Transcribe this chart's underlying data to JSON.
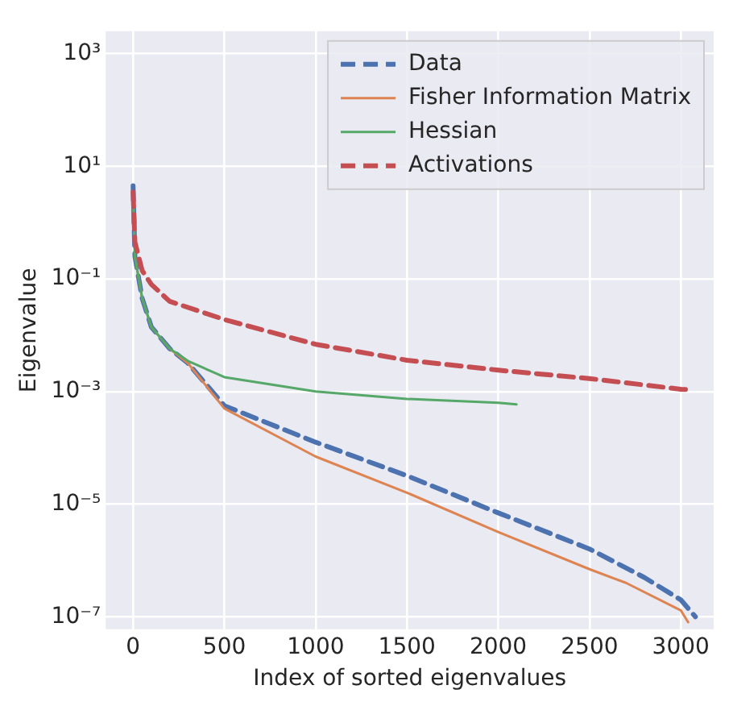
{
  "chart_data": {
    "type": "line",
    "xlabel": "Index of sorted eigenvalues",
    "ylabel": "Eigenvalue",
    "log": "y",
    "grid": true,
    "legend": "top right",
    "xlim": [
      -150,
      3180
    ],
    "xticks": [
      0,
      500,
      1000,
      1500,
      2000,
      2500,
      3000
    ],
    "ylim": [
      6e-08,
      2500
    ],
    "yticks": [
      {
        "value": 1000,
        "label": "10³"
      },
      {
        "value": 10,
        "label": "10¹"
      },
      {
        "value": 0.1,
        "label": "10⁻¹"
      },
      {
        "value": 0.001,
        "label": "10⁻³"
      },
      {
        "value": 1e-05,
        "label": "10⁻⁵"
      },
      {
        "value": 1e-07,
        "label": "10⁻⁷"
      }
    ],
    "series": [
      {
        "name": "Data",
        "color": "#4c72b0",
        "line_style": "dashed",
        "x": [
          0,
          10,
          50,
          100,
          200,
          300,
          500,
          1000,
          1500,
          2000,
          2500,
          2800,
          3000,
          3080
        ],
        "values": [
          4.5,
          0.25,
          0.045,
          0.014,
          0.0058,
          0.0032,
          0.00056,
          0.000126,
          3.2e-05,
          7e-06,
          1.6e-06,
          5e-07,
          2e-07,
          1e-07
        ]
      },
      {
        "name": "Fisher Information Matrix",
        "color": "#dd8452",
        "line_style": "solid",
        "x": [
          0,
          10,
          50,
          100,
          200,
          300,
          500,
          1000,
          1500,
          2000,
          2500,
          2700,
          3000,
          3040
        ],
        "values": [
          3.5,
          0.25,
          0.045,
          0.014,
          0.0058,
          0.0032,
          0.0005,
          7e-05,
          1.6e-05,
          3.2e-06,
          7e-07,
          4e-07,
          1.3e-07,
          8e-08
        ]
      },
      {
        "name": "Hessian",
        "color": "#55a868",
        "line_style": "solid",
        "x": [
          0,
          10,
          50,
          100,
          200,
          300,
          500,
          1000,
          1500,
          2000,
          2100
        ],
        "values": [
          3.5,
          0.25,
          0.045,
          0.014,
          0.0058,
          0.0035,
          0.0018,
          0.001,
          0.00074,
          0.00063,
          0.00059
        ]
      },
      {
        "name": "Activations",
        "color": "#c44e52",
        "line_style": "dashed",
        "x": [
          0,
          10,
          50,
          100,
          200,
          500,
          1000,
          1500,
          2000,
          2500,
          3000,
          3050
        ],
        "values": [
          3.5,
          0.45,
          0.14,
          0.08,
          0.04,
          0.019,
          0.0069,
          0.0036,
          0.0024,
          0.0017,
          0.0011,
          0.00107
        ]
      }
    ]
  }
}
